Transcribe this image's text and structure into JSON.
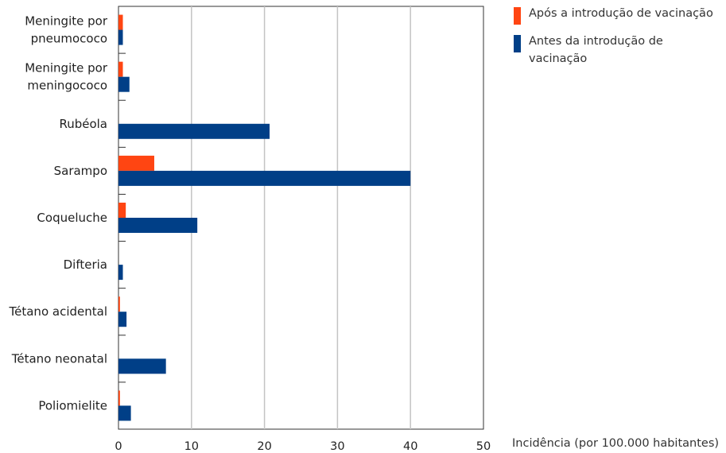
{
  "chart_data": {
    "type": "bar",
    "orientation": "horizontal",
    "categories": [
      [
        "Meningite por",
        "pneumococo"
      ],
      [
        "Meningite por",
        "meningococo"
      ],
      [
        "Rubéola"
      ],
      [
        "Sarampo"
      ],
      [
        "Coqueluche"
      ],
      [
        "Difteria"
      ],
      [
        "Tétano acidental"
      ],
      [
        "Tétano neonatal"
      ],
      [
        "Poliomielite"
      ]
    ],
    "series": [
      {
        "name": "Após a introdução de vacinação",
        "color": "#ff4512",
        "values": [
          0.6,
          0.6,
          0,
          4.9,
          1.0,
          0,
          0.2,
          0,
          0.2
        ]
      },
      {
        "name": "Antes da introdução de vacinação",
        "color": "#003f87",
        "values": [
          0.6,
          1.5,
          20.7,
          40.0,
          10.8,
          0.6,
          1.1,
          6.5,
          1.7
        ]
      }
    ],
    "xlim": [
      0,
      50
    ],
    "xticks": [
      "0",
      "10",
      "20",
      "30",
      "40",
      "50"
    ],
    "xlabel": "Incidência (por 100.000 habitantes)",
    "grid": "vertical",
    "legend_position": "top-right"
  }
}
